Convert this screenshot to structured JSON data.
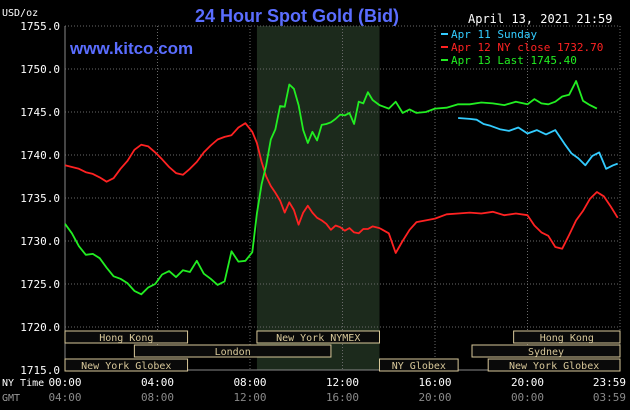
{
  "chart_data": {
    "type": "line",
    "title": "24 Hour Spot Gold (Bid)",
    "date_label": "April 13, 2021 21:59",
    "watermark": "www.kitco.com",
    "unit_label": "USD/oz",
    "ylim": [
      1715.0,
      1755.0
    ],
    "y_ticks": [
      "1755.0",
      "1750.0",
      "1745.0",
      "1740.0",
      "1735.0",
      "1730.0",
      "1725.0",
      "1720.0",
      "1715.0"
    ],
    "x_axis_rows": [
      {
        "label": "NY Time",
        "ticks": [
          "00:00",
          "04:00",
          "08:00",
          "12:00",
          "16:00",
          "20:00",
          "23:59"
        ]
      },
      {
        "label": "GMT",
        "ticks": [
          "04:00",
          "08:00",
          "12:00",
          "16:00",
          "20:00",
          "00:00",
          "03:59"
        ]
      }
    ],
    "shaded_region_hours": [
      8.3,
      13.6
    ],
    "sessions": [
      {
        "name": "Hong Kong",
        "start": 0.0,
        "end": 5.3
      },
      {
        "name": "London",
        "start": 3.0,
        "end": 11.5
      },
      {
        "name": "New York Globex",
        "start": 0.0,
        "end": 5.3
      },
      {
        "name": "New York NYMEX",
        "start": 8.3,
        "end": 13.6
      },
      {
        "name": "NY Globex",
        "start": 13.6,
        "end": 17.0
      },
      {
        "name": "Hong Kong",
        "start": 19.4,
        "end": 24.0
      },
      {
        "name": "Sydney",
        "start": 17.6,
        "end": 24.0
      },
      {
        "name": "New York Globex",
        "start": 18.3,
        "end": 24.0
      }
    ],
    "series": [
      {
        "name": "Apr 11 Sunday",
        "color": "#33ccff",
        "x": [
          17.0,
          17.5,
          17.8,
          18.1,
          18.4,
          18.8,
          19.2,
          19.6,
          20.0,
          20.4,
          20.8,
          21.2,
          21.6,
          21.9,
          22.2,
          22.5,
          22.8,
          23.1,
          23.4,
          23.7,
          23.9
        ],
        "y": [
          1744.3,
          1744.2,
          1744.1,
          1743.6,
          1743.4,
          1743.0,
          1742.8,
          1743.2,
          1742.5,
          1742.9,
          1742.4,
          1742.9,
          1741.3,
          1740.2,
          1739.6,
          1738.8,
          1739.9,
          1740.3,
          1738.4,
          1738.8,
          1739.0
        ]
      },
      {
        "name": "Apr 12 NY close 1732.70",
        "color": "#ff2222",
        "x": [
          0.0,
          0.3,
          0.6,
          0.9,
          1.2,
          1.5,
          1.8,
          2.1,
          2.4,
          2.7,
          3.0,
          3.3,
          3.6,
          3.9,
          4.2,
          4.5,
          4.8,
          5.1,
          5.4,
          5.7,
          6.0,
          6.3,
          6.6,
          6.9,
          7.2,
          7.5,
          7.8,
          8.1,
          8.3,
          8.5,
          8.7,
          8.9,
          9.1,
          9.3,
          9.5,
          9.7,
          9.9,
          10.1,
          10.3,
          10.5,
          10.7,
          10.9,
          11.1,
          11.3,
          11.5,
          11.7,
          11.9,
          12.1,
          12.3,
          12.5,
          12.7,
          12.9,
          13.1,
          13.3,
          13.6,
          14.0,
          14.3,
          14.6,
          14.9,
          15.2,
          15.6,
          16.0,
          16.5,
          17.0,
          17.5,
          18.0,
          18.5,
          19.0,
          19.5,
          20.0,
          20.3,
          20.6,
          20.9,
          21.2,
          21.5,
          21.8,
          22.1,
          22.4,
          22.7,
          23.0,
          23.3,
          23.6,
          23.9
        ],
        "y": [
          1738.8,
          1738.6,
          1738.4,
          1738.0,
          1737.8,
          1737.4,
          1736.9,
          1737.3,
          1738.4,
          1739.3,
          1740.6,
          1741.2,
          1741.0,
          1740.3,
          1739.5,
          1738.6,
          1737.9,
          1737.7,
          1738.4,
          1739.2,
          1740.3,
          1741.1,
          1741.8,
          1742.1,
          1742.3,
          1743.2,
          1743.7,
          1742.7,
          1741.4,
          1739.2,
          1737.5,
          1736.4,
          1735.6,
          1734.7,
          1733.3,
          1734.5,
          1733.6,
          1731.9,
          1733.3,
          1734.1,
          1733.3,
          1732.7,
          1732.4,
          1732.0,
          1731.3,
          1731.8,
          1731.6,
          1731.2,
          1731.5,
          1731.0,
          1730.9,
          1731.4,
          1731.4,
          1731.7,
          1731.5,
          1730.9,
          1728.6,
          1730.0,
          1731.3,
          1732.2,
          1732.4,
          1732.6,
          1733.1,
          1733.2,
          1733.3,
          1733.2,
          1733.4,
          1733.0,
          1733.2,
          1733.0,
          1731.8,
          1731.0,
          1730.6,
          1729.3,
          1729.1,
          1730.7,
          1732.4,
          1733.5,
          1734.9,
          1735.7,
          1735.2,
          1734.0,
          1732.7
        ]
      },
      {
        "name": "Apr 13 Last 1745.40",
        "color": "#22ee22",
        "x": [
          0.0,
          0.3,
          0.6,
          0.9,
          1.2,
          1.5,
          1.8,
          2.1,
          2.4,
          2.7,
          3.0,
          3.3,
          3.6,
          3.9,
          4.2,
          4.5,
          4.8,
          5.1,
          5.4,
          5.7,
          6.0,
          6.3,
          6.6,
          6.9,
          7.2,
          7.5,
          7.8,
          8.1,
          8.3,
          8.5,
          8.7,
          8.9,
          9.1,
          9.3,
          9.5,
          9.7,
          9.9,
          10.1,
          10.3,
          10.5,
          10.7,
          10.9,
          11.1,
          11.3,
          11.5,
          11.7,
          11.9,
          12.1,
          12.3,
          12.5,
          12.7,
          12.9,
          13.1,
          13.3,
          13.6,
          14.0,
          14.3,
          14.6,
          14.9,
          15.2,
          15.6,
          16.0,
          16.5,
          17.0,
          17.5,
          18.0,
          18.5,
          19.0,
          19.5,
          20.0,
          20.3,
          20.6,
          20.9,
          21.2,
          21.5,
          21.8,
          22.1,
          22.4,
          22.7,
          23.0
        ],
        "y": [
          1732.0,
          1730.9,
          1729.4,
          1728.4,
          1728.5,
          1728.0,
          1726.9,
          1725.9,
          1725.6,
          1725.1,
          1724.2,
          1723.8,
          1724.6,
          1725.0,
          1726.1,
          1726.5,
          1725.8,
          1726.6,
          1726.4,
          1727.7,
          1726.2,
          1725.6,
          1724.9,
          1725.3,
          1728.8,
          1727.6,
          1727.7,
          1728.7,
          1733.2,
          1736.6,
          1738.8,
          1741.8,
          1743.0,
          1745.7,
          1745.6,
          1748.2,
          1747.7,
          1745.8,
          1742.9,
          1741.4,
          1742.7,
          1741.7,
          1743.5,
          1743.6,
          1743.8,
          1744.2,
          1744.7,
          1744.6,
          1744.9,
          1743.6,
          1746.2,
          1746.0,
          1747.3,
          1746.4,
          1745.8,
          1745.4,
          1746.2,
          1744.9,
          1745.3,
          1744.9,
          1745.0,
          1745.4,
          1745.5,
          1745.9,
          1745.9,
          1746.1,
          1746.0,
          1745.8,
          1746.2,
          1745.9,
          1746.5,
          1746.0,
          1745.9,
          1746.2,
          1746.8,
          1747.0,
          1748.6,
          1746.3,
          1745.8,
          1745.4
        ]
      }
    ]
  }
}
